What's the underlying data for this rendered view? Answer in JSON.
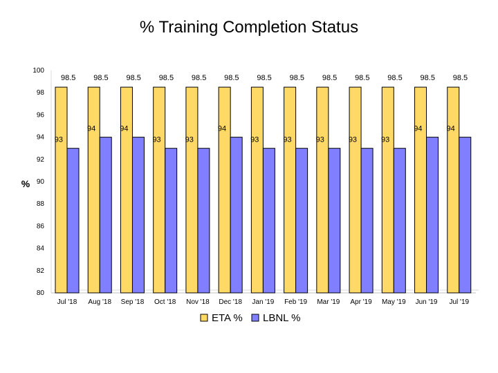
{
  "chart_data": {
    "type": "bar",
    "title": "% Training Completion Status",
    "xlabel": "",
    "ylabel": "%",
    "ylim": [
      80,
      100
    ],
    "yticks": [
      80,
      82,
      84,
      86,
      88,
      90,
      92,
      94,
      96,
      98,
      100
    ],
    "categories": [
      "Jul '18",
      "Aug '18",
      "Sep '18",
      "Oct '18",
      "Nov '18",
      "Dec '18",
      "Jan '19",
      "Feb '19",
      "Mar '19",
      "Apr '19",
      "May '19",
      "Jun '19",
      "Jul '19"
    ],
    "series": [
      {
        "name": "ETA %",
        "color": "#FFD966",
        "values": [
          98.5,
          98.5,
          98.5,
          98.5,
          98.5,
          98.5,
          98.5,
          98.5,
          98.5,
          98.5,
          98.5,
          98.5,
          98.5
        ]
      },
      {
        "name": "LBNL %",
        "color": "#7F7FFF",
        "values": [
          93,
          94,
          94,
          93,
          93,
          94,
          93,
          93,
          93,
          93,
          93,
          94,
          94
        ]
      }
    ],
    "grid": false,
    "legend_position": "bottom"
  }
}
